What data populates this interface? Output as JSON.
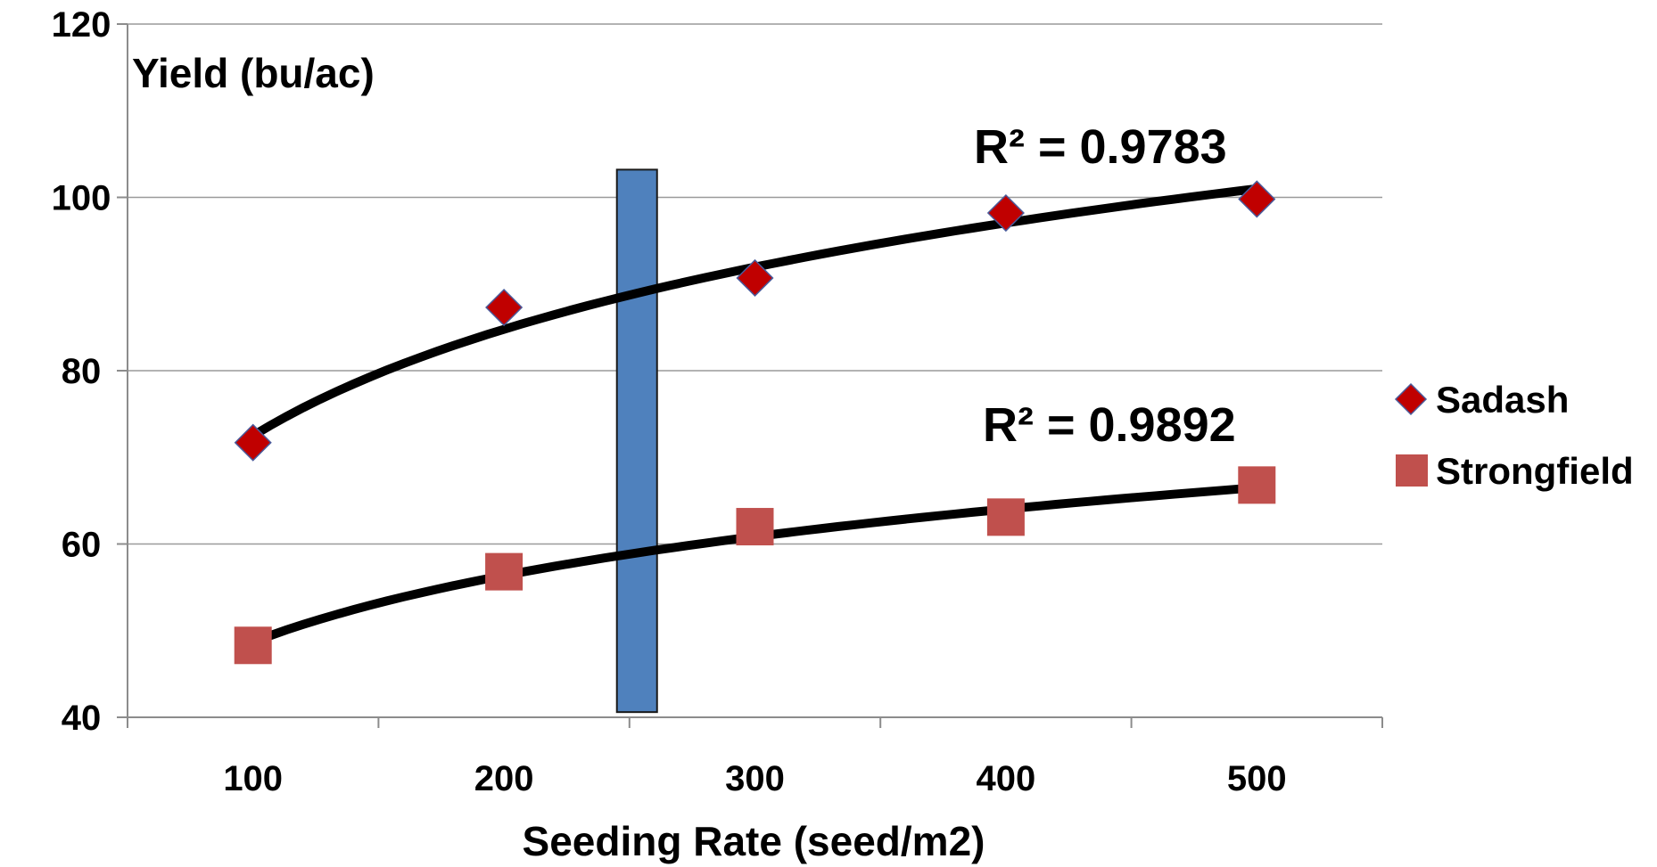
{
  "chart_data": {
    "type": "scatter",
    "xlabel": "Seeding Rate (seed/m2)",
    "ylabel": "Yield (bu/ac)",
    "xlim": [
      50,
      550
    ],
    "ylim": [
      40,
      120
    ],
    "x_ticks": [
      100,
      200,
      300,
      400,
      500
    ],
    "y_ticks": [
      40,
      60,
      80,
      100,
      120
    ],
    "grid": "horizontal",
    "legend_position": "right",
    "highlight_band": {
      "x": [
        245,
        261
      ],
      "y": [
        40.6,
        103.2
      ],
      "color": "#4f81bd"
    },
    "series": [
      {
        "name": "Sadash",
        "marker": "diamond",
        "color": "#c00000",
        "x": [
          100,
          200,
          300,
          400,
          500
        ],
        "y": [
          71.7,
          87.3,
          90.7,
          98.2,
          99.8
        ],
        "trendline": {
          "type": "logarithmic",
          "x_range": [
            100,
            500
          ],
          "y_at_min": 72.5,
          "y_at_max": 101.0
        },
        "r2_label": "R² = 0.9783"
      },
      {
        "name": "Strongfield",
        "marker": "square",
        "color": "#c0504d",
        "x": [
          100,
          200,
          300,
          400,
          500
        ],
        "y": [
          48.3,
          56.8,
          62.0,
          63.1,
          66.8
        ],
        "trendline": {
          "type": "logarithmic",
          "x_range": [
            100,
            500
          ],
          "y_at_min": 48.7,
          "y_at_max": 66.5
        },
        "r2_label": "R² = 0.9892"
      }
    ]
  }
}
